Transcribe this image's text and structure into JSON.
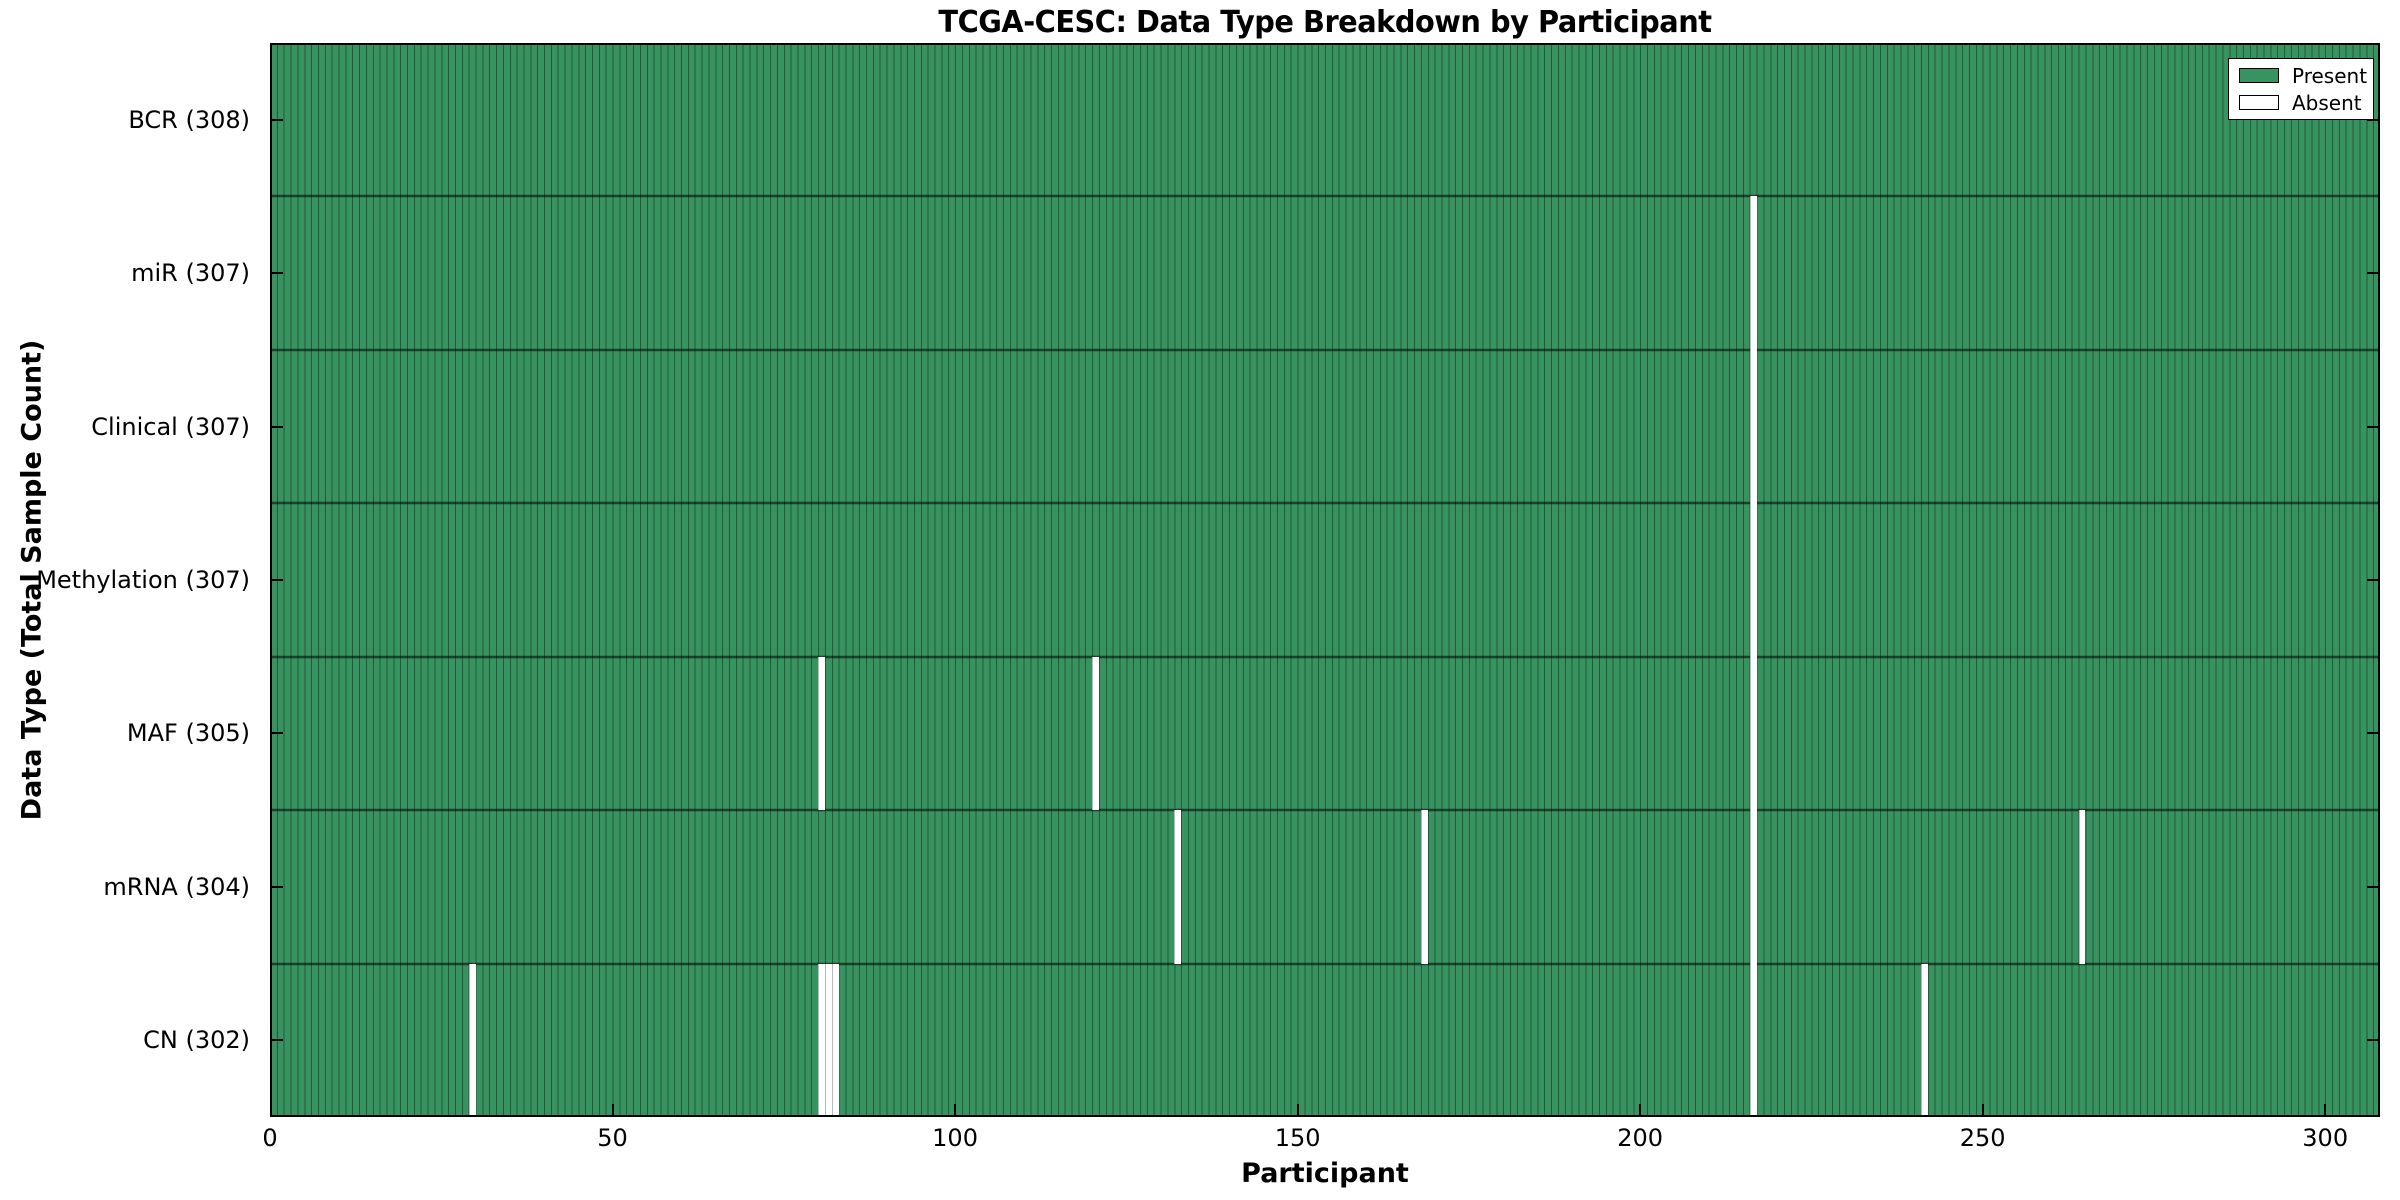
{
  "title": "TCGA-CESC: Data Type Breakdown by Participant",
  "legend": {
    "present_label": "Present",
    "absent_label": "Absent"
  },
  "chart_data": {
    "type": "heatmap",
    "title": "TCGA-CESC: Data Type Breakdown by Participant",
    "xlabel": "Participant",
    "ylabel": "Data Type (Total Sample Count)",
    "x_ticks": [
      0,
      50,
      100,
      150,
      200,
      250,
      300
    ],
    "x_range": [
      0,
      308
    ],
    "n_participants": 308,
    "grid": false,
    "legend_position": "upper right",
    "legend_entries": [
      {
        "label": "Present",
        "state": "present"
      },
      {
        "label": "Absent",
        "state": "absent"
      }
    ],
    "rows": [
      {
        "label": "BCR (308)",
        "data_type": "BCR",
        "total": 308,
        "absent_participants": []
      },
      {
        "label": "miR (307)",
        "data_type": "miR",
        "total": 307,
        "absent_participants": [
          216
        ]
      },
      {
        "label": "Clinical (307)",
        "data_type": "Clinical",
        "total": 307,
        "absent_participants": [
          216
        ]
      },
      {
        "label": "Methylation (307)",
        "data_type": "Methylation",
        "total": 307,
        "absent_participants": [
          216
        ]
      },
      {
        "label": "MAF (305)",
        "data_type": "MAF",
        "total": 305,
        "absent_participants": [
          80,
          120,
          216
        ]
      },
      {
        "label": "mRNA (304)",
        "data_type": "mRNA",
        "total": 304,
        "absent_participants": [
          132,
          168,
          216,
          264
        ]
      },
      {
        "label": "CN (302)",
        "data_type": "CN",
        "total": 302,
        "absent_participants": [
          29,
          80,
          81,
          82,
          216,
          241
        ]
      }
    ],
    "colors": {
      "present": "#37935F",
      "absent": "#ffffff",
      "bar_edge": "#27573C",
      "row_divider": "rgba(0,0,0,0.55)",
      "frame": "#000000"
    }
  }
}
